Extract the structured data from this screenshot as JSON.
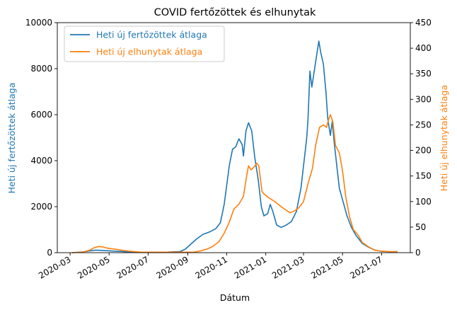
{
  "chart_data": {
    "type": "line",
    "title": "COVID fertőzöttek és elhunytak",
    "xlabel": "Dátum",
    "xlim": [
      "2020-02-10",
      "2021-08-15"
    ],
    "x_ticks": [
      "2020-03",
      "2020-05",
      "2020-07",
      "2020-09",
      "2020-11",
      "2021-01",
      "2021-03",
      "2021-05",
      "2021-07"
    ],
    "legend": "top-left",
    "grid": false,
    "y_left": {
      "label": "Heti új fertőzöttek átlaga",
      "lim": [
        0,
        10000
      ],
      "ticks": [
        "0",
        "2000",
        "4000",
        "6000",
        "8000",
        "10000"
      ],
      "color": "#1f77b4"
    },
    "y_right": {
      "label": "Heti új elhunytak átlaga",
      "lim": [
        0,
        450
      ],
      "ticks": [
        "0",
        "50",
        "100",
        "150",
        "200",
        "250",
        "300",
        "350",
        "400",
        "450"
      ],
      "color": "#ff7f0e"
    },
    "series": [
      {
        "name": "Heti új fertőzöttek átlaga",
        "axis": "left",
        "color": "#1f77b4",
        "points": [
          [
            "2020-03-04",
            0
          ],
          [
            "2020-03-20",
            30
          ],
          [
            "2020-04-01",
            80
          ],
          [
            "2020-04-10",
            110
          ],
          [
            "2020-04-20",
            100
          ],
          [
            "2020-05-01",
            80
          ],
          [
            "2020-05-15",
            60
          ],
          [
            "2020-06-01",
            30
          ],
          [
            "2020-06-20",
            15
          ],
          [
            "2020-07-10",
            20
          ],
          [
            "2020-08-01",
            25
          ],
          [
            "2020-08-20",
            50
          ],
          [
            "2020-08-28",
            150
          ],
          [
            "2020-09-05",
            350
          ],
          [
            "2020-09-15",
            600
          ],
          [
            "2020-09-25",
            800
          ],
          [
            "2020-10-05",
            900
          ],
          [
            "2020-10-15",
            1050
          ],
          [
            "2020-10-22",
            1300
          ],
          [
            "2020-10-28",
            2100
          ],
          [
            "2020-11-05",
            3800
          ],
          [
            "2020-11-10",
            4500
          ],
          [
            "2020-11-15",
            4600
          ],
          [
            "2020-11-20",
            4950
          ],
          [
            "2020-11-25",
            4700
          ],
          [
            "2020-11-27",
            4200
          ],
          [
            "2020-12-01",
            5300
          ],
          [
            "2020-12-05",
            5650
          ],
          [
            "2020-12-10",
            5300
          ],
          [
            "2020-12-15",
            4100
          ],
          [
            "2020-12-20",
            3200
          ],
          [
            "2020-12-25",
            2000
          ],
          [
            "2020-12-29",
            1600
          ],
          [
            "2021-01-04",
            1700
          ],
          [
            "2021-01-08",
            2100
          ],
          [
            "2021-01-12",
            1800
          ],
          [
            "2021-01-18",
            1200
          ],
          [
            "2021-01-25",
            1100
          ],
          [
            "2021-02-02",
            1200
          ],
          [
            "2021-02-10",
            1350
          ],
          [
            "2021-02-18",
            1800
          ],
          [
            "2021-02-25",
            2800
          ],
          [
            "2021-03-02",
            4000
          ],
          [
            "2021-03-06",
            5000
          ],
          [
            "2021-03-08",
            5800
          ],
          [
            "2021-03-11",
            7900
          ],
          [
            "2021-03-14",
            7200
          ],
          [
            "2021-03-20",
            8300
          ],
          [
            "2021-03-25",
            9200
          ],
          [
            "2021-03-28",
            8700
          ],
          [
            "2021-04-01",
            8200
          ],
          [
            "2021-04-05",
            7000
          ],
          [
            "2021-04-08",
            5800
          ],
          [
            "2021-04-12",
            5100
          ],
          [
            "2021-04-15",
            5700
          ],
          [
            "2021-04-18",
            4800
          ],
          [
            "2021-04-22",
            3800
          ],
          [
            "2021-04-26",
            2800
          ],
          [
            "2021-05-01",
            2300
          ],
          [
            "2021-05-08",
            1600
          ],
          [
            "2021-05-15",
            1100
          ],
          [
            "2021-05-22",
            750
          ],
          [
            "2021-06-01",
            400
          ],
          [
            "2021-06-10",
            250
          ],
          [
            "2021-06-20",
            120
          ],
          [
            "2021-07-01",
            60
          ],
          [
            "2021-07-15",
            40
          ],
          [
            "2021-07-26",
            45
          ]
        ]
      },
      {
        "name": "Heti új elhunytak átlaga",
        "axis": "right",
        "color": "#ff7f0e",
        "points": [
          [
            "2020-03-04",
            0
          ],
          [
            "2020-03-20",
            1
          ],
          [
            "2020-04-01",
            5
          ],
          [
            "2020-04-08",
            10
          ],
          [
            "2020-04-15",
            12
          ],
          [
            "2020-04-22",
            11
          ],
          [
            "2020-05-01",
            8
          ],
          [
            "2020-05-10",
            7
          ],
          [
            "2020-05-20",
            5
          ],
          [
            "2020-06-01",
            3
          ],
          [
            "2020-06-20",
            1
          ],
          [
            "2020-07-15",
            1
          ],
          [
            "2020-08-15",
            1
          ],
          [
            "2020-09-10",
            1
          ],
          [
            "2020-09-20",
            3
          ],
          [
            "2020-10-01",
            7
          ],
          [
            "2020-10-10",
            12
          ],
          [
            "2020-10-20",
            22
          ],
          [
            "2020-10-28",
            38
          ],
          [
            "2020-11-05",
            60
          ],
          [
            "2020-11-12",
            85
          ],
          [
            "2020-11-20",
            95
          ],
          [
            "2020-11-27",
            110
          ],
          [
            "2020-12-02",
            150
          ],
          [
            "2020-12-05",
            170
          ],
          [
            "2020-12-09",
            162
          ],
          [
            "2020-12-14",
            168
          ],
          [
            "2020-12-18",
            175
          ],
          [
            "2020-12-21",
            170
          ],
          [
            "2020-12-26",
            120
          ],
          [
            "2020-12-29",
            115
          ],
          [
            "2021-01-05",
            108
          ],
          [
            "2021-01-15",
            100
          ],
          [
            "2021-01-25",
            90
          ],
          [
            "2021-02-02",
            83
          ],
          [
            "2021-02-08",
            78
          ],
          [
            "2021-02-15",
            82
          ],
          [
            "2021-02-22",
            88
          ],
          [
            "2021-03-01",
            100
          ],
          [
            "2021-03-08",
            135
          ],
          [
            "2021-03-15",
            165
          ],
          [
            "2021-03-20",
            210
          ],
          [
            "2021-03-26",
            245
          ],
          [
            "2021-04-01",
            250
          ],
          [
            "2021-04-06",
            245
          ],
          [
            "2021-04-09",
            260
          ],
          [
            "2021-04-12",
            270
          ],
          [
            "2021-04-16",
            255
          ],
          [
            "2021-04-20",
            210
          ],
          [
            "2021-04-26",
            195
          ],
          [
            "2021-05-01",
            160
          ],
          [
            "2021-05-06",
            110
          ],
          [
            "2021-05-12",
            70
          ],
          [
            "2021-05-18",
            45
          ],
          [
            "2021-05-25",
            35
          ],
          [
            "2021-06-01",
            20
          ],
          [
            "2021-06-10",
            12
          ],
          [
            "2021-06-20",
            5
          ],
          [
            "2021-07-01",
            3
          ],
          [
            "2021-07-15",
            2
          ],
          [
            "2021-07-26",
            2
          ]
        ]
      }
    ]
  }
}
